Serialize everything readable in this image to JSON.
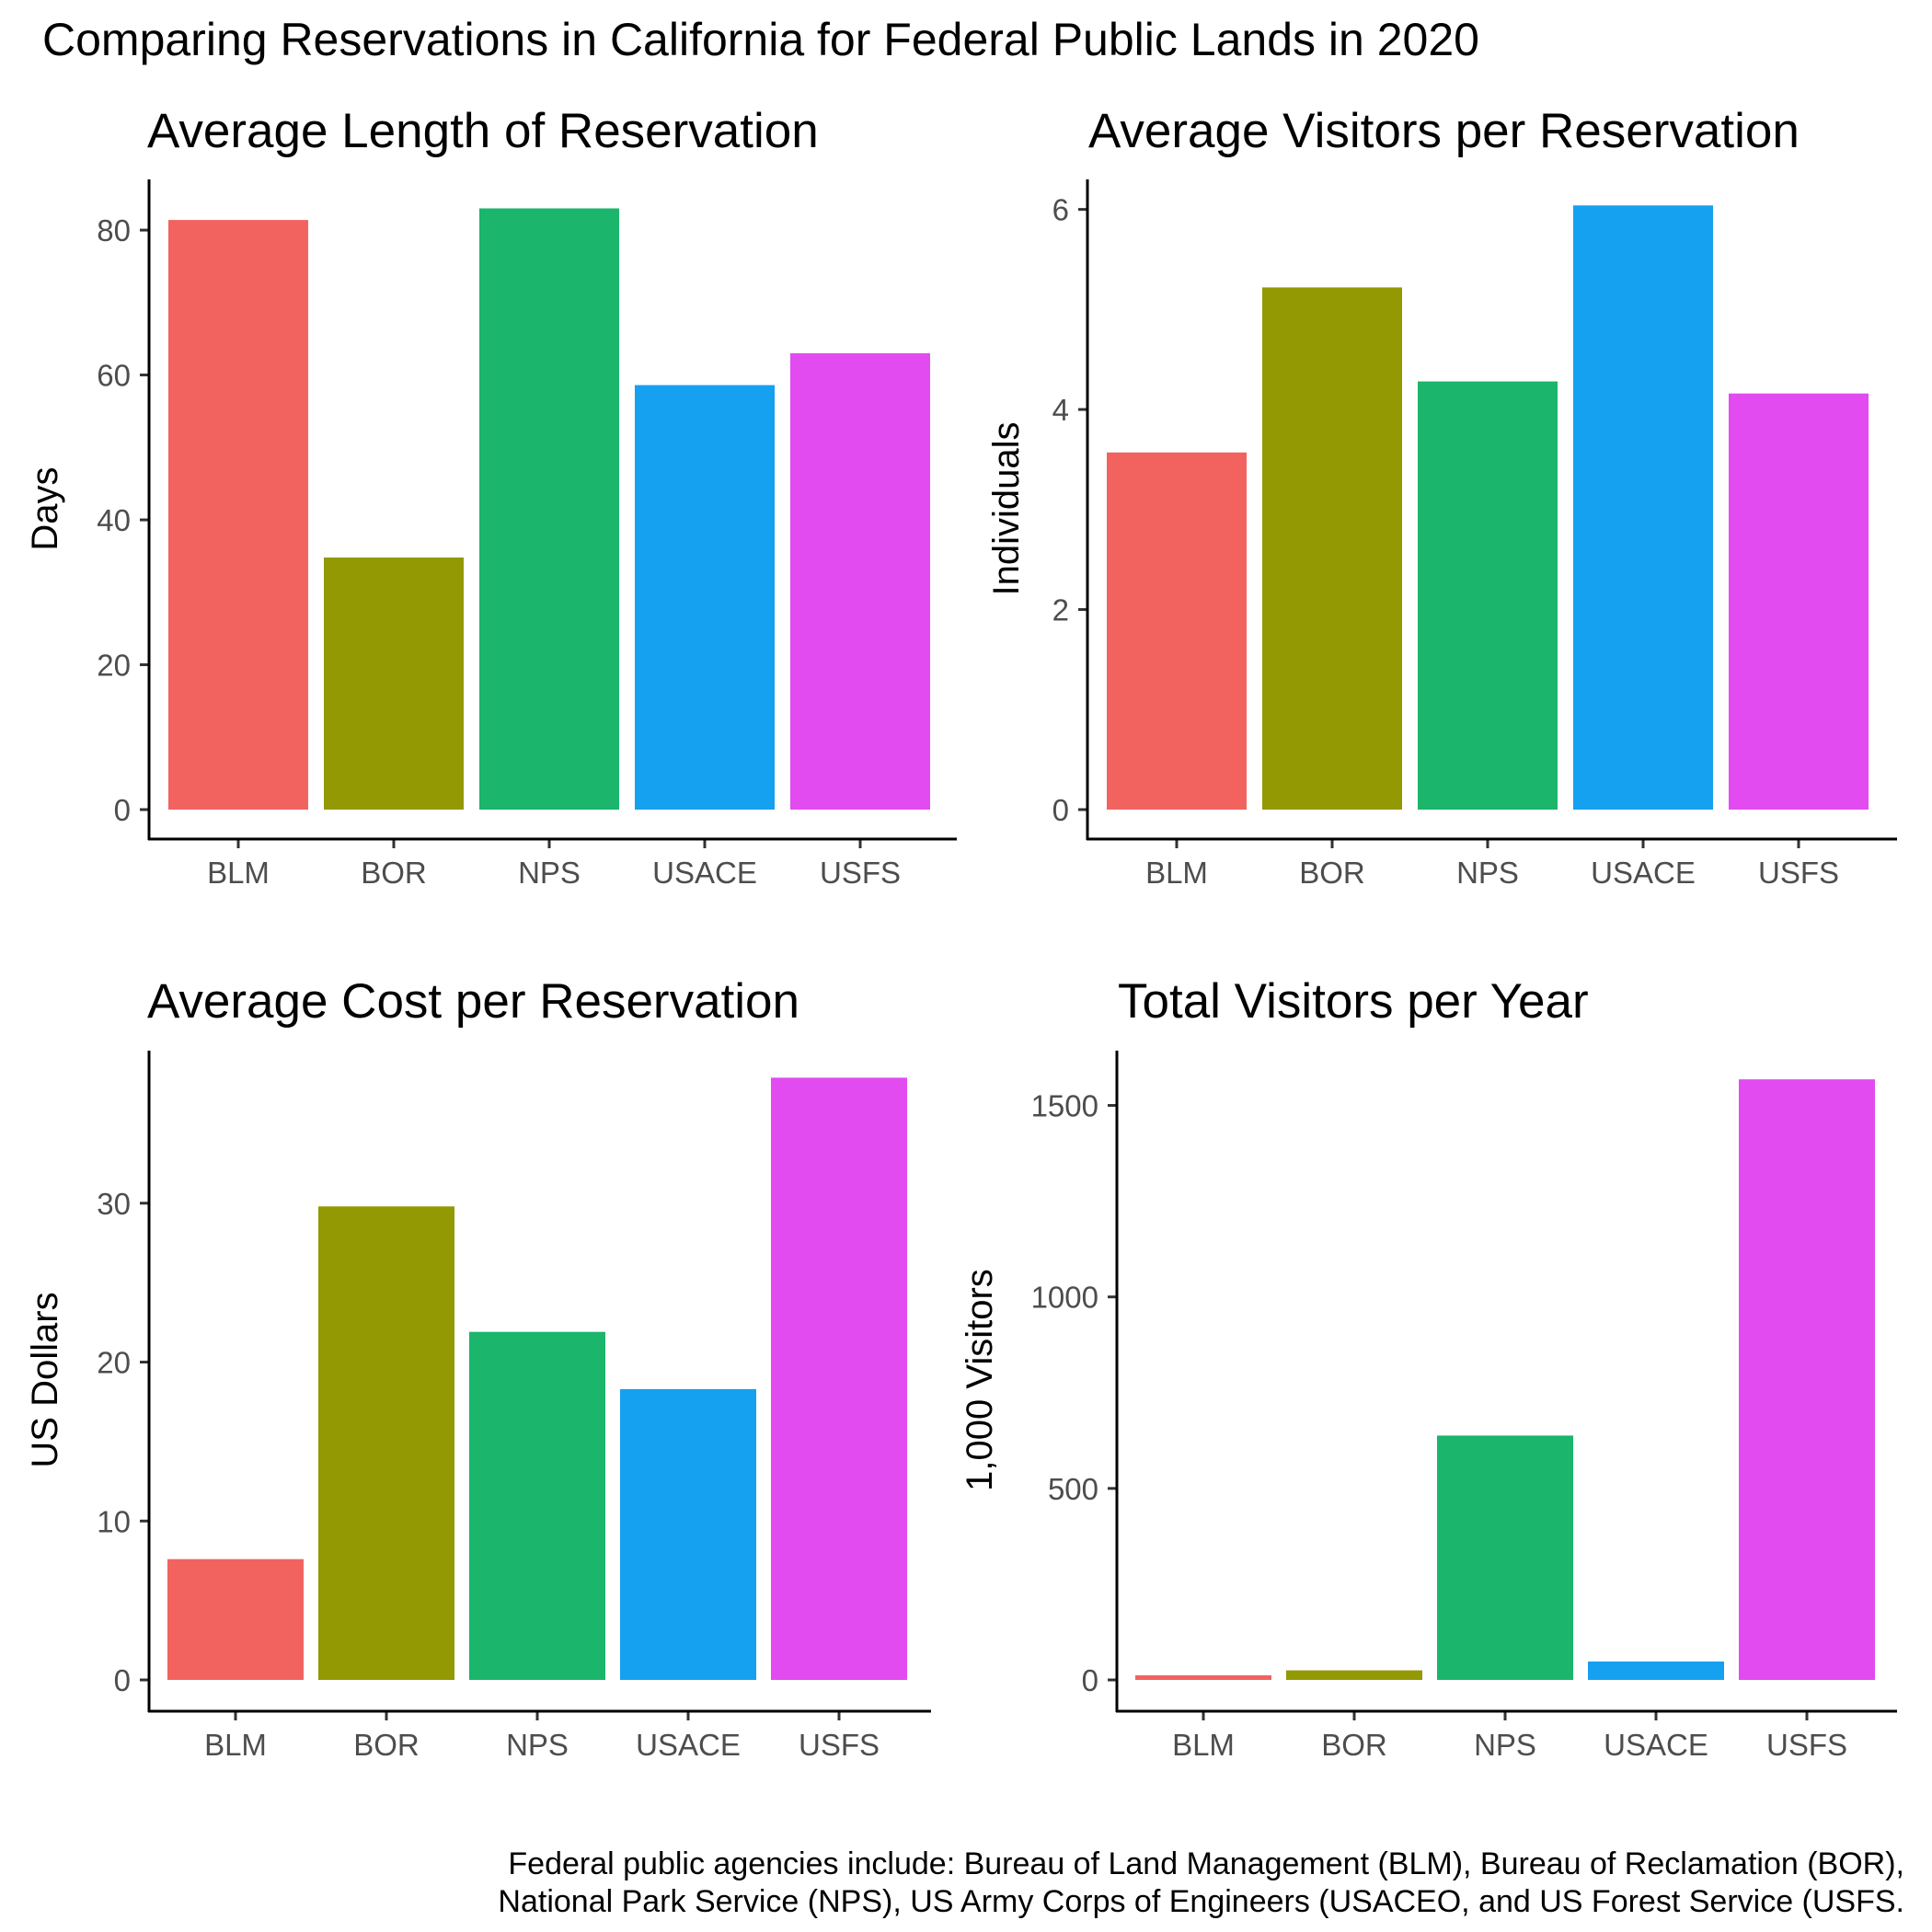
{
  "title": "Comparing Reservations in California for Federal Public Lands in 2020",
  "caption_lines": [
    "Federal public agencies include: Bureau of Land Management (BLM), Bureau of Reclamation (BOR),",
    "National Park Service (NPS), US Army Corps of Engineers (USACEO, and US Forest Service (USFS."
  ],
  "colors": {
    "BLM": "#F26360",
    "BOR": "#929903",
    "NPS": "#1BB56C",
    "USACE": "#16A0F0",
    "USFS": "#E14BF0"
  },
  "chart_data": [
    {
      "type": "bar",
      "title": "Average Length of Reservation",
      "xlabel": "",
      "ylabel": "Days",
      "categories": [
        "BLM",
        "BOR",
        "NPS",
        "USACE",
        "USFS"
      ],
      "values": [
        81.4,
        34.8,
        83.0,
        58.6,
        63.0
      ],
      "yticks": [
        0,
        20,
        40,
        60,
        80
      ],
      "ylim": [
        0,
        87
      ],
      "grid": false,
      "legend": "none"
    },
    {
      "type": "bar",
      "title": "Average Visitors per Reservation",
      "xlabel": "",
      "ylabel": "Individuals",
      "categories": [
        "BLM",
        "BOR",
        "NPS",
        "USACE",
        "USFS"
      ],
      "values": [
        3.57,
        5.22,
        4.28,
        6.04,
        4.16
      ],
      "yticks": [
        0,
        2,
        4,
        6
      ],
      "ylim": [
        0,
        6.3
      ],
      "grid": false,
      "legend": "none"
    },
    {
      "type": "bar",
      "title": "Average Cost per Reservation",
      "xlabel": "",
      "ylabel": "US Dollars",
      "categories": [
        "BLM",
        "BOR",
        "NPS",
        "USACE",
        "USFS"
      ],
      "values": [
        7.6,
        29.8,
        21.9,
        18.3,
        37.9
      ],
      "yticks": [
        0,
        10,
        20,
        30
      ],
      "ylim": [
        0,
        39.6
      ],
      "grid": false,
      "legend": "none"
    },
    {
      "type": "bar",
      "title": "Total Visitors per Year",
      "xlabel": "",
      "ylabel": "1,000 Visitors",
      "categories": [
        "BLM",
        "BOR",
        "NPS",
        "USACE",
        "USFS"
      ],
      "values": [
        12,
        25,
        638,
        48,
        1568
      ],
      "yticks": [
        0,
        500,
        1000,
        1500
      ],
      "ylim": [
        0,
        1643
      ],
      "grid": false,
      "legend": "none"
    }
  ]
}
